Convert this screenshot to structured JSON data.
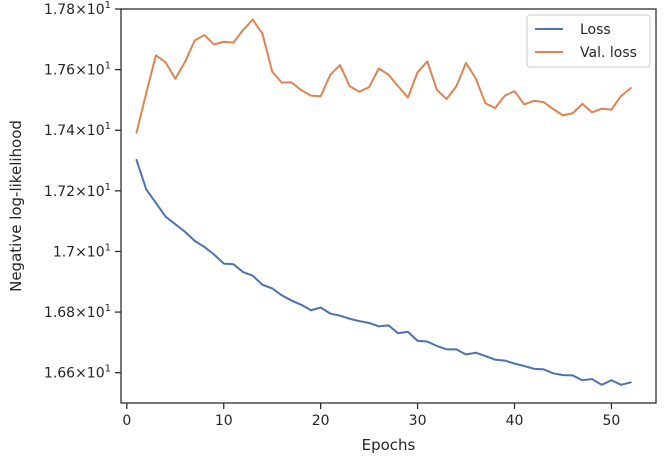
{
  "chart_data": {
    "type": "line",
    "xlabel": "Epochs",
    "ylabel": "Negative log-likelihood",
    "xlim": [
      -0.6,
      54.6
    ],
    "ylim": [
      16.5,
      17.8
    ],
    "x_ticks": [
      0,
      10,
      20,
      30,
      40,
      50
    ],
    "x_tick_labels": [
      "0",
      "10",
      "20",
      "30",
      "40",
      "50"
    ],
    "y_ticks": [
      16.6,
      16.8,
      17.0,
      17.2,
      17.4,
      17.6,
      17.8
    ],
    "y_tick_mantissas": [
      "1.66",
      "1.68",
      "1.7",
      "1.72",
      "1.74",
      "1.76",
      "1.78"
    ],
    "y_tick_base": "10",
    "y_tick_exponent": "1",
    "legend_position": "top-right",
    "grid": false,
    "x": [
      1,
      2,
      3,
      4,
      5,
      6,
      7,
      8,
      9,
      10,
      11,
      12,
      13,
      14,
      15,
      16,
      17,
      18,
      19,
      20,
      21,
      22,
      23,
      24,
      25,
      26,
      27,
      28,
      29,
      30,
      31,
      32,
      33,
      34,
      35,
      36,
      37,
      38,
      39,
      40,
      41,
      42,
      43,
      44,
      45,
      46,
      47,
      48,
      49,
      50,
      51,
      52
    ],
    "series": [
      {
        "name": "Loss",
        "color": "#4c72b0",
        "values": [
          17.302,
          17.205,
          17.16,
          17.115,
          17.09,
          17.065,
          17.035,
          17.015,
          16.99,
          16.96,
          16.958,
          16.932,
          16.92,
          16.89,
          16.878,
          16.855,
          16.838,
          16.824,
          16.806,
          16.815,
          16.795,
          16.788,
          16.778,
          16.77,
          16.764,
          16.753,
          16.756,
          16.73,
          16.735,
          16.705,
          16.703,
          16.688,
          16.677,
          16.677,
          16.66,
          16.666,
          16.655,
          16.643,
          16.64,
          16.63,
          16.622,
          16.613,
          16.611,
          16.598,
          16.592,
          16.591,
          16.575,
          16.579,
          16.56,
          16.575,
          16.56,
          16.568
        ]
      },
      {
        "name": "Val. loss",
        "color": "#dd8452",
        "values": [
          17.392,
          17.522,
          17.647,
          17.624,
          17.57,
          17.625,
          17.696,
          17.714,
          17.683,
          17.692,
          17.689,
          17.731,
          17.765,
          17.718,
          17.593,
          17.557,
          17.558,
          17.532,
          17.514,
          17.512,
          17.583,
          17.615,
          17.545,
          17.527,
          17.542,
          17.604,
          17.583,
          17.545,
          17.508,
          17.591,
          17.627,
          17.533,
          17.503,
          17.545,
          17.622,
          17.571,
          17.489,
          17.473,
          17.514,
          17.529,
          17.485,
          17.497,
          17.493,
          17.47,
          17.449,
          17.456,
          17.487,
          17.459,
          17.471,
          17.468,
          17.513,
          17.539
        ]
      }
    ]
  }
}
